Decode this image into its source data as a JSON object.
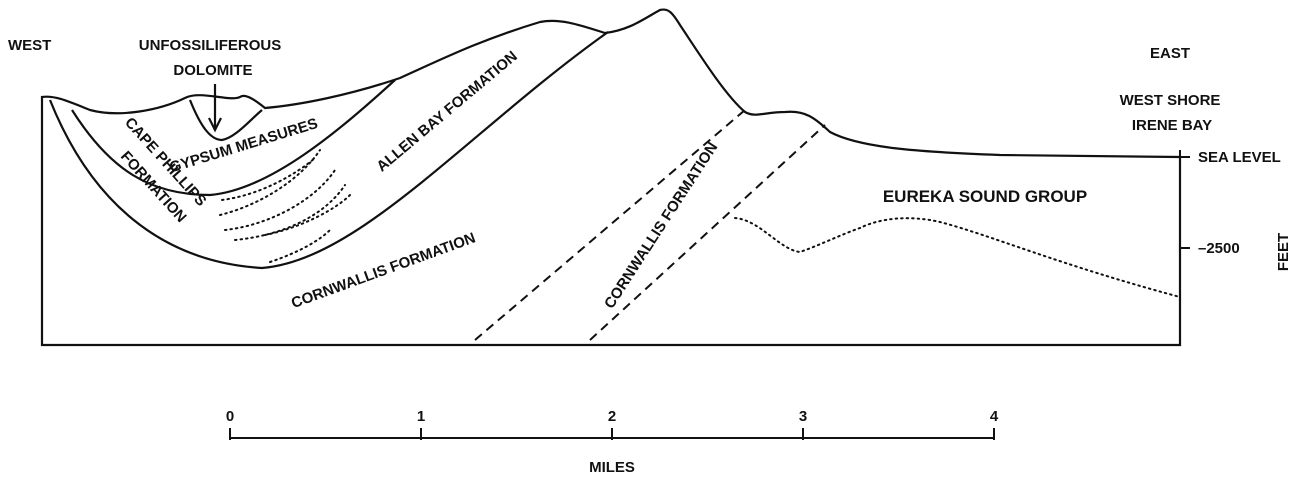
{
  "labels": {
    "west": "WEST",
    "east": "EAST",
    "unfossiliferous": "UNFOSSILIFEROUS",
    "dolomite": "DOLOMITE",
    "west_shore": "WEST SHORE",
    "irene_bay": "IRENE BAY",
    "gypsum": "GYPSUM MEASURES",
    "cape_phillips": "CAPE PHILLIPS",
    "cape_formation": "FORMATION",
    "allen_bay": "ALLEN BAY FORMATION",
    "cornwallis_left": "CORNWALLIS FORMATION",
    "cornwallis_mid": "CORNWALLIS FORMATION",
    "eureka": "EUREKA SOUND GROUP"
  },
  "depth_axis": {
    "label": "FEET",
    "ticks": [
      {
        "value": 0,
        "label": "SEA LEVEL"
      },
      {
        "value": -2500,
        "label": "–2500"
      }
    ]
  },
  "scale": {
    "label": "MILES",
    "ticks": [
      0,
      1,
      2,
      3,
      4
    ]
  }
}
